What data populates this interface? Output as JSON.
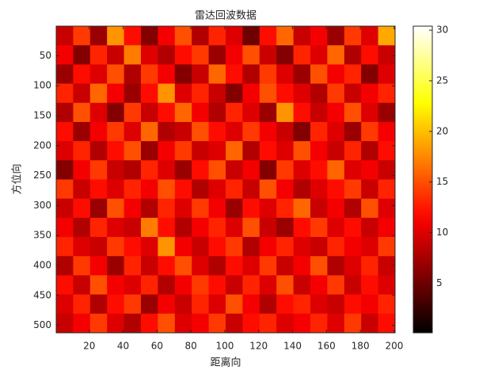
{
  "chart_data": {
    "type": "heatmap",
    "title": "雷达回波数据",
    "x_label": "距离向",
    "y_label": "方位向",
    "xlim": [
      0.5,
      200.5
    ],
    "xticks": [
      20,
      40,
      60,
      80,
      100,
      120,
      140,
      160,
      180,
      200
    ],
    "ylim": [
      0.5,
      512.5
    ],
    "yticks": [
      50,
      100,
      150,
      200,
      250,
      300,
      350,
      400,
      450,
      500
    ],
    "y_reversed": true,
    "colormap": "hot",
    "clim": [
      0.1,
      30.4
    ],
    "colorbar_ticks": [
      5,
      10,
      15,
      20,
      25,
      30
    ],
    "values": [
      [
        9,
        14,
        7,
        18,
        12,
        6,
        11,
        15,
        8,
        13,
        10,
        5,
        12,
        16,
        9,
        11,
        7,
        14,
        10,
        19
      ],
      [
        11,
        6,
        13,
        9,
        17,
        10,
        8,
        12,
        14,
        7,
        11,
        15,
        9,
        6,
        13,
        10,
        16,
        8,
        12,
        9
      ],
      [
        7,
        12,
        10,
        15,
        8,
        14,
        11,
        6,
        9,
        16,
        12,
        8,
        14,
        10,
        7,
        15,
        11,
        13,
        6,
        10
      ],
      [
        13,
        9,
        16,
        11,
        7,
        12,
        18,
        10,
        13,
        9,
        6,
        11,
        15,
        12,
        10,
        8,
        14,
        9,
        11,
        13
      ],
      [
        8,
        15,
        10,
        6,
        14,
        9,
        12,
        16,
        11,
        8,
        13,
        10,
        7,
        18,
        12,
        9,
        11,
        15,
        10,
        7
      ],
      [
        12,
        7,
        11,
        14,
        10,
        16,
        8,
        9,
        15,
        12,
        10,
        14,
        11,
        9,
        6,
        13,
        10,
        7,
        14,
        11
      ],
      [
        10,
        13,
        8,
        12,
        15,
        7,
        11,
        14,
        9,
        10,
        16,
        8,
        12,
        10,
        15,
        11,
        9,
        13,
        8,
        12
      ],
      [
        6,
        11,
        14,
        9,
        8,
        13,
        10,
        7,
        12,
        15,
        9,
        11,
        6,
        14,
        10,
        12,
        16,
        10,
        11,
        9
      ],
      [
        14,
        9,
        12,
        10,
        13,
        11,
        15,
        12,
        8,
        10,
        13,
        9,
        15,
        11,
        8,
        10,
        12,
        14,
        9,
        13
      ],
      [
        9,
        12,
        7,
        15,
        11,
        8,
        13,
        10,
        14,
        11,
        7,
        12,
        10,
        13,
        16,
        9,
        11,
        8,
        15,
        10
      ],
      [
        11,
        8,
        13,
        10,
        9,
        17,
        12,
        8,
        11,
        13,
        10,
        15,
        9,
        7,
        12,
        14,
        10,
        12,
        9,
        11
      ],
      [
        13,
        10,
        9,
        14,
        12,
        10,
        18,
        11,
        9,
        12,
        14,
        8,
        11,
        13,
        10,
        9,
        13,
        11,
        10,
        14
      ],
      [
        8,
        14,
        11,
        7,
        13,
        9,
        12,
        15,
        10,
        8,
        12,
        10,
        14,
        9,
        11,
        15,
        8,
        10,
        13,
        9
      ],
      [
        12,
        9,
        15,
        11,
        10,
        13,
        8,
        11,
        14,
        12,
        9,
        13,
        10,
        15,
        9,
        11,
        14,
        9,
        12,
        10
      ],
      [
        10,
        13,
        8,
        12,
        14,
        7,
        11,
        9,
        13,
        10,
        15,
        11,
        8,
        12,
        13,
        10,
        9,
        12,
        11,
        13
      ],
      [
        9,
        11,
        14,
        10,
        8,
        12,
        15,
        10,
        11,
        14,
        9,
        12,
        13,
        10,
        11,
        13,
        10,
        14,
        9,
        12
      ]
    ]
  }
}
